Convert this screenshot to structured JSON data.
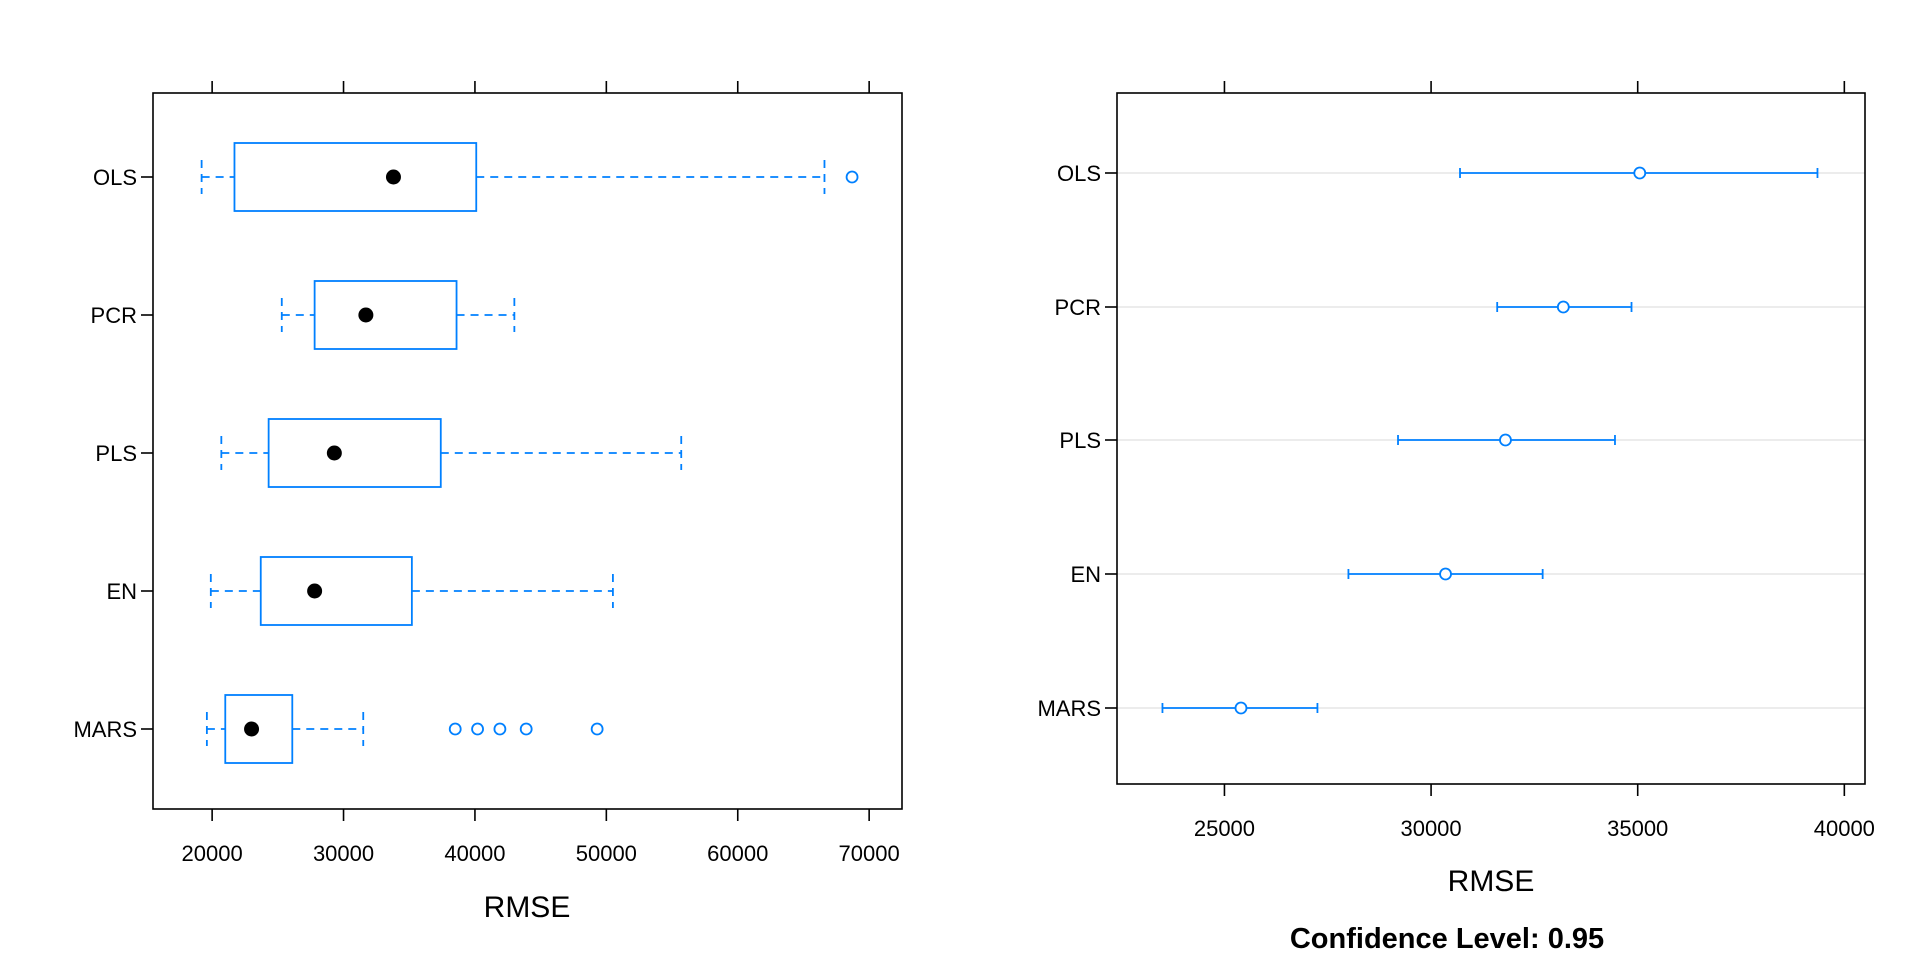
{
  "chart_data": [
    {
      "type": "box",
      "categories": [
        "OLS",
        "PCR",
        "PLS",
        "EN",
        "MARS"
      ],
      "xlabel": "RMSE",
      "xlim": [
        15500,
        72500
      ],
      "xticks": [
        20000,
        30000,
        40000,
        50000,
        60000,
        70000
      ],
      "series": [
        {
          "category": "OLS",
          "whisker_low": 19200,
          "q1": 21700,
          "median": 33800,
          "q3": 40100,
          "whisker_high": 66600,
          "outliers": [
            68700
          ]
        },
        {
          "category": "PCR",
          "whisker_low": 25300,
          "q1": 27800,
          "median": 31700,
          "q3": 38600,
          "whisker_high": 43000,
          "outliers": []
        },
        {
          "category": "PLS",
          "whisker_low": 20700,
          "q1": 24300,
          "median": 29300,
          "q3": 37400,
          "whisker_high": 55700,
          "outliers": []
        },
        {
          "category": "EN",
          "whisker_low": 19900,
          "q1": 23700,
          "median": 27800,
          "q3": 35200,
          "whisker_high": 50500,
          "outliers": []
        },
        {
          "category": "MARS",
          "whisker_low": 19600,
          "q1": 21000,
          "median": 23000,
          "q3": 26100,
          "whisker_high": 31500,
          "outliers": [
            38500,
            40200,
            41900,
            43900,
            49300
          ]
        }
      ]
    },
    {
      "type": "dotplot",
      "categories": [
        "OLS",
        "PCR",
        "PLS",
        "EN",
        "MARS"
      ],
      "xlabel": "RMSE",
      "subtitle": "Confidence Level: 0.95",
      "xlim": [
        22400,
        40500
      ],
      "xticks": [
        25000,
        30000,
        35000,
        40000
      ],
      "series": [
        {
          "category": "OLS",
          "estimate": 35050,
          "lower": 30700,
          "upper": 39350
        },
        {
          "category": "PCR",
          "estimate": 33200,
          "lower": 31600,
          "upper": 34850
        },
        {
          "category": "PLS",
          "estimate": 31800,
          "lower": 29200,
          "upper": 34450
        },
        {
          "category": "EN",
          "estimate": 30350,
          "lower": 28000,
          "upper": 32700
        },
        {
          "category": "MARS",
          "estimate": 25400,
          "lower": 23500,
          "upper": 27250
        }
      ]
    }
  ],
  "colors": {
    "accent": "#0080ff",
    "median": "#000000",
    "grid": "#e6e6e6",
    "frame": "#000000"
  }
}
